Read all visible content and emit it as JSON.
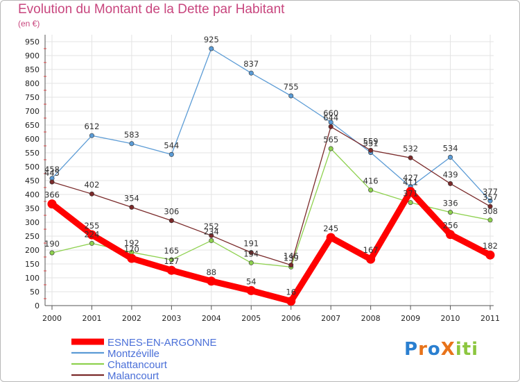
{
  "title": "Evolution du Montant de la Dette par Habitant",
  "subtitle": "(en €)",
  "logo": {
    "text": "ProXiti",
    "letters": [
      "P",
      "r",
      "o",
      "X",
      "i",
      "t",
      "i"
    ],
    "colors": [
      "#2a7fd0",
      "#e8731a",
      "#2a7fd0",
      "#e8731a",
      "#8cc63f",
      "#8cc63f",
      "#8cc63f"
    ]
  },
  "chart_data": {
    "type": "line",
    "title": "Evolution du Montant de la Dette par Habitant",
    "ylabel": "(en €)",
    "xlabel": "",
    "ylim": [
      0,
      950
    ],
    "yticks": [
      0,
      50,
      100,
      150,
      200,
      250,
      300,
      350,
      400,
      450,
      500,
      550,
      600,
      650,
      700,
      750,
      800,
      850,
      900,
      950
    ],
    "categories": [
      "2000",
      "2001",
      "2002",
      "2003",
      "2004",
      "2005",
      "2006",
      "2007",
      "2008",
      "2009",
      "2010",
      "2011"
    ],
    "series": [
      {
        "name": "ESNES-EN-ARGONNE",
        "color": "#ff0000",
        "values": [
          366,
          255,
          170,
          127,
          88,
          54,
          16,
          245,
          167,
          411,
          256,
          182
        ],
        "labels": [
          "366",
          "255",
          "170",
          "127",
          "88",
          "54",
          "16",
          "245",
          "167",
          "411",
          "256",
          "182"
        ]
      },
      {
        "name": "Montzéville",
        "color": "#5b9bd5",
        "values": [
          458,
          612,
          583,
          544,
          925,
          837,
          755,
          660,
          551,
          427,
          534,
          377
        ],
        "labels": [
          "458",
          "612",
          "583",
          "544",
          "925",
          "837",
          "755",
          "660",
          "551",
          "427",
          "534",
          "377"
        ]
      },
      {
        "name": "Chattancourt",
        "color": "#8ed14f",
        "values": [
          190,
          224,
          192,
          165,
          234,
          154,
          139,
          565,
          416,
          371,
          336,
          308
        ],
        "labels": [
          "190",
          "224",
          "192",
          "165",
          "234",
          "154",
          "139",
          "565",
          "416",
          "371",
          "336",
          "308"
        ]
      },
      {
        "name": "Malancourt",
        "color": "#7a2a2a",
        "values": [
          445,
          402,
          354,
          306,
          252,
          191,
          146,
          644,
          559,
          532,
          439,
          357
        ],
        "labels": [
          "445",
          "402",
          "354",
          "306",
          "252",
          "191",
          "146",
          "644",
          "559",
          "532",
          "439",
          "357"
        ]
      }
    ],
    "legend_position": "bottom-left"
  }
}
